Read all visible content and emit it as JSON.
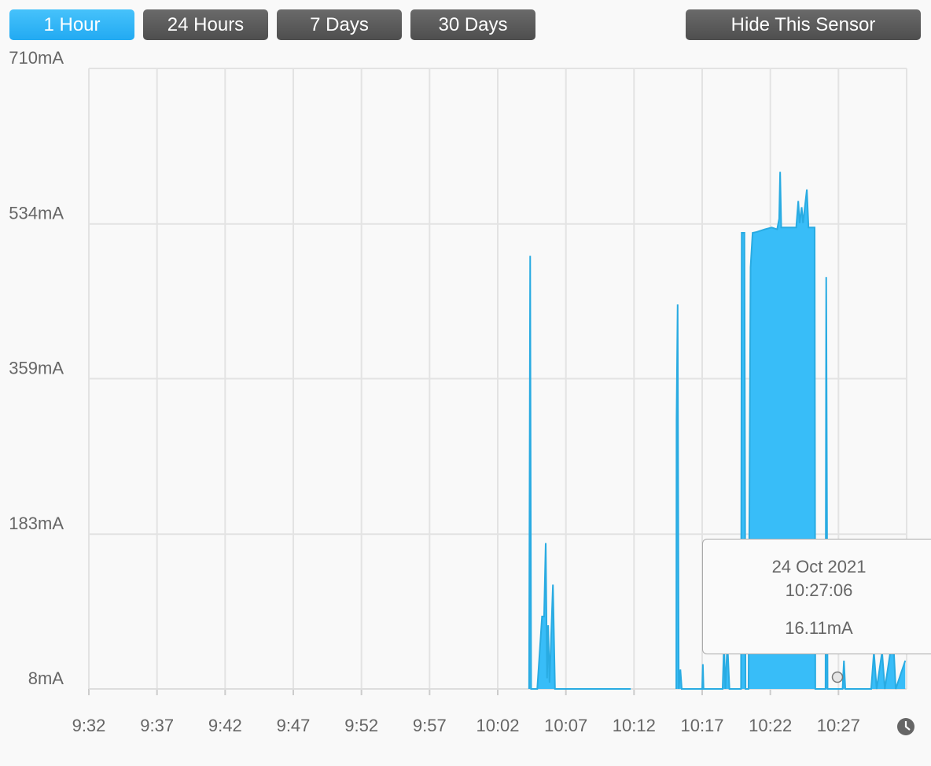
{
  "buttons": [
    "1 Hour",
    "24 Hours",
    "7 Days",
    "30 Days"
  ],
  "hide_button": "Hide This Sensor",
  "chart_data": {
    "type": "area",
    "color": "#38bdf8",
    "line_color": "#29abe2",
    "grid": true,
    "x": [
      604.3,
      604.38,
      604.45,
      604.9,
      605.25,
      605.4,
      605.52,
      605.62,
      605.7,
      605.8,
      606.05,
      606.2,
      611.76,
      613,
      615.1,
      615.12,
      615.2,
      615.28,
      615.4,
      615.5,
      617.0,
      617.05,
      617.1,
      618.5,
      618.6,
      618.7,
      618.85,
      619.0,
      619.85,
      619.9,
      620.1,
      620.18,
      620.4,
      620.55,
      620.7,
      621,
      621.6,
      622.1,
      622.5,
      622.65,
      622.72,
      622.8,
      623.3,
      623.9,
      624.05,
      624.15,
      624.3,
      624.4,
      624.68,
      624.8,
      625.25,
      625.3,
      626.05,
      626.1,
      626.2,
      627.3,
      627.4,
      627.5,
      629.4,
      629.6,
      629.8,
      630.2,
      630.4,
      631,
      631.2,
      631.9
    ],
    "values": [
      8,
      498,
      8,
      8,
      90,
      90,
      173,
      20,
      80,
      15,
      126,
      8,
      8,
      null,
      8,
      313,
      443,
      8,
      30,
      8,
      8,
      36,
      8,
      8,
      60,
      8,
      60,
      8,
      8,
      524,
      524,
      8,
      8,
      485,
      524,
      525,
      528,
      530,
      528,
      540,
      593,
      530,
      530,
      530,
      560,
      535,
      553,
      535,
      573,
      530,
      530,
      8,
      8,
      474,
      8,
      8,
      40,
      8,
      8,
      50,
      8,
      50,
      8,
      70,
      8,
      40
    ],
    "xlim": [
      572,
      632
    ],
    "xticks": [
      {
        "value": 572,
        "label": "9:32"
      },
      {
        "value": 577,
        "label": "9:37"
      },
      {
        "value": 582,
        "label": "9:42"
      },
      {
        "value": 587,
        "label": "9:47"
      },
      {
        "value": 592,
        "label": "9:52"
      },
      {
        "value": 597,
        "label": "9:57"
      },
      {
        "value": 602,
        "label": "10:02"
      },
      {
        "value": 607,
        "label": "10:07"
      },
      {
        "value": 612,
        "label": "10:12"
      },
      {
        "value": 617,
        "label": "10:17"
      },
      {
        "value": 622,
        "label": "10:22"
      },
      {
        "value": 627,
        "label": "10:27"
      }
    ],
    "ylim": [
      8,
      710
    ],
    "yticks": [
      {
        "value": 8,
        "label": "8mA"
      },
      {
        "value": 183,
        "label": "183mA"
      },
      {
        "value": 359,
        "label": "359mA"
      },
      {
        "value": 534,
        "label": "534mA"
      },
      {
        "value": 710,
        "label": "710mA"
      }
    ]
  },
  "tooltip": {
    "date": "24 Oct 2021",
    "time": "10:27:06",
    "value": "16.11mA"
  }
}
